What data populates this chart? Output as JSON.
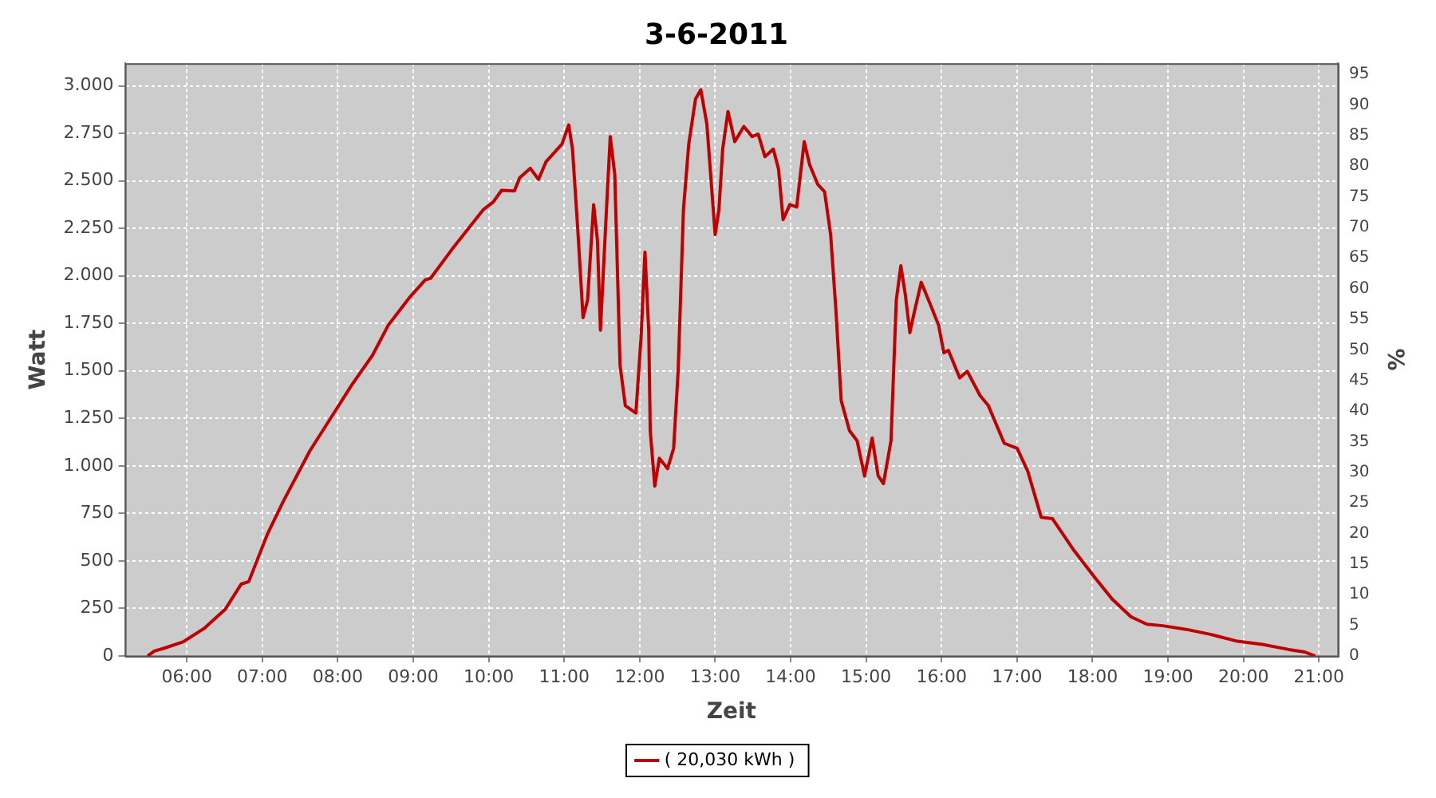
{
  "chart_data": {
    "type": "line",
    "title": "3-6-2011",
    "xlabel": "Zeit",
    "ylabel": "Watt",
    "y2label": "%",
    "x": [
      5.48,
      5.57,
      5.71,
      5.95,
      6.23,
      6.51,
      6.72,
      6.82,
      7.07,
      7.28,
      7.63,
      7.97,
      8.18,
      8.46,
      8.67,
      8.95,
      9.16,
      9.23,
      9.51,
      9.93,
      10.06,
      10.17,
      10.34,
      10.41,
      10.55,
      10.66,
      10.76,
      10.97,
      11.06,
      11.11,
      11.18,
      11.25,
      11.31,
      11.39,
      11.44,
      11.48,
      11.56,
      11.61,
      11.67,
      11.74,
      11.81,
      11.95,
      12.02,
      12.07,
      12.12,
      12.14,
      12.2,
      12.26,
      12.37,
      12.45,
      12.51,
      12.58,
      12.65,
      12.74,
      12.81,
      12.89,
      13.0,
      13.05,
      13.1,
      13.17,
      13.26,
      13.38,
      13.49,
      13.57,
      13.66,
      13.77,
      13.84,
      13.9,
      13.99,
      14.08,
      14.18,
      14.25,
      14.36,
      14.45,
      14.53,
      14.6,
      14.67,
      14.78,
      14.88,
      14.98,
      15.08,
      15.16,
      15.23,
      15.33,
      15.4,
      15.46,
      15.52,
      15.58,
      15.63,
      15.73,
      15.84,
      15.96,
      16.03,
      16.09,
      16.24,
      16.34,
      16.51,
      16.62,
      16.83,
      17.0,
      17.14,
      17.32,
      17.47,
      17.74,
      18.02,
      18.26,
      18.51,
      18.72,
      18.93,
      19.24,
      19.56,
      19.9,
      20.25,
      20.6,
      20.81,
      20.95
    ],
    "series": [
      {
        "name": "( 20,030 kWh )",
        "color": "#c00000",
        "values": [
          0,
          26,
          42,
          74,
          145,
          246,
          378,
          391,
          643,
          815,
          1079,
          1291,
          1423,
          1582,
          1741,
          1886,
          1979,
          1987,
          2138,
          2349,
          2389,
          2450,
          2447,
          2516,
          2566,
          2508,
          2601,
          2693,
          2794,
          2667,
          2244,
          1780,
          1873,
          2375,
          2190,
          1714,
          2349,
          2733,
          2534,
          1529,
          1317,
          1278,
          1688,
          2125,
          1714,
          1185,
          894,
          1040,
          986,
          1093,
          1502,
          2349,
          2693,
          2931,
          2979,
          2799,
          2217,
          2349,
          2667,
          2865,
          2706,
          2786,
          2733,
          2746,
          2627,
          2667,
          2561,
          2296,
          2375,
          2362,
          2706,
          2587,
          2481,
          2442,
          2217,
          1820,
          1344,
          1185,
          1133,
          947,
          1146,
          947,
          907,
          1133,
          1873,
          2053,
          1900,
          1701,
          1794,
          1966,
          1860,
          1741,
          1595,
          1608,
          1463,
          1498,
          1370,
          1317,
          1119,
          1093,
          974,
          730,
          722,
          563,
          418,
          299,
          206,
          167,
          159,
          140,
          114,
          79,
          61,
          34,
          21,
          0
        ]
      }
    ],
    "xlim": [
      5.18,
      21.25
    ],
    "xticks": [
      {
        "value": 6,
        "label": "06:00"
      },
      {
        "value": 7,
        "label": "07:00"
      },
      {
        "value": 8,
        "label": "08:00"
      },
      {
        "value": 9,
        "label": "09:00"
      },
      {
        "value": 10,
        "label": "10:00"
      },
      {
        "value": 11,
        "label": "11:00"
      },
      {
        "value": 12,
        "label": "12:00"
      },
      {
        "value": 13,
        "label": "13:00"
      },
      {
        "value": 14,
        "label": "14:00"
      },
      {
        "value": 15,
        "label": "15:00"
      },
      {
        "value": 16,
        "label": "16:00"
      },
      {
        "value": 17,
        "label": "17:00"
      },
      {
        "value": 18,
        "label": "18:00"
      },
      {
        "value": 19,
        "label": "19:00"
      },
      {
        "value": 20,
        "label": "20:00"
      },
      {
        "value": 21,
        "label": "21:00"
      }
    ],
    "ylim": [
      0,
      3119
    ],
    "yticks": [
      0,
      250,
      500,
      750,
      {
        "value": 1000,
        "label": "1.000"
      },
      {
        "value": 1250,
        "label": "1.250"
      },
      {
        "value": 1500,
        "label": "1.500"
      },
      {
        "value": 1750,
        "label": "1.750"
      },
      {
        "value": 2000,
        "label": "2.000"
      },
      {
        "value": 2250,
        "label": "2.250"
      },
      {
        "value": 2500,
        "label": "2.500"
      },
      {
        "value": 2750,
        "label": "2.750"
      },
      {
        "value": 3000,
        "label": "3.000"
      }
    ],
    "y2lim": [
      0,
      96.8
    ],
    "y2ticks": [
      0,
      5,
      10,
      15,
      20,
      25,
      30,
      35,
      40,
      45,
      50,
      55,
      60,
      65,
      70,
      75,
      80,
      85,
      90,
      95
    ],
    "grid": true,
    "legend": "bottom",
    "marker": "none",
    "line_style": "solid"
  }
}
